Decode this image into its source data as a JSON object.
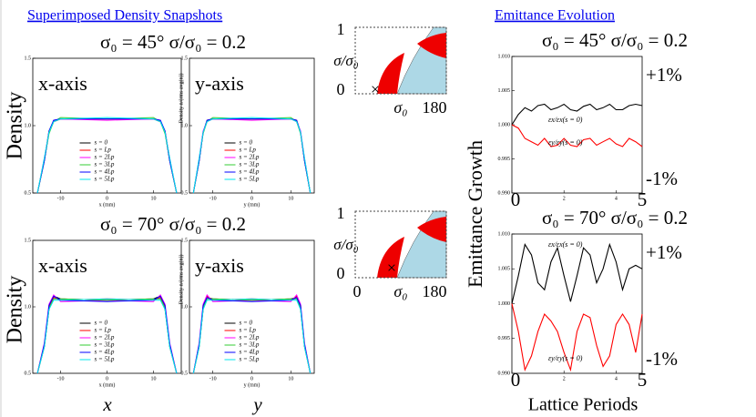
{
  "headings": {
    "left": "Superimposed Density Snapshots",
    "right": "Emittance Evolution"
  },
  "rows": [
    {
      "title": "σ₀ = 45°   σ/σ₀ = 0.2"
    },
    {
      "title": "σ₀ = 70°   σ/σ₀ = 0.2"
    }
  ],
  "density_label": "Density",
  "bottom_labels": [
    "x",
    "y"
  ],
  "emittance_ylabel": "Emittance Growth",
  "emittance_xlabel": "Lattice Periods",
  "diagrams": [
    {
      "y_top": "1",
      "y_label": "σ/σ₀",
      "y_bottom": "0",
      "marker": "×",
      "x_mid": "σ₀",
      "x_right": "180"
    },
    {
      "y_top": "1",
      "y_label": "σ/σ₀",
      "y_bottom": "0",
      "marker": "×",
      "x_left": "0",
      "x_mid": "σ₀",
      "x_right": "180"
    }
  ],
  "chart_data": [
    {
      "type": "line",
      "corner_label": "x-axis",
      "xlabel": "x (mm)",
      "legend": "lower center",
      "x": [
        -15,
        -13.5,
        -12.5,
        -11.5,
        -10,
        0,
        10,
        11.5,
        12.5,
        13.5,
        15
      ],
      "xlim": [
        -16,
        16
      ],
      "ylim": [
        0.5,
        1.5
      ],
      "xticks": [
        -10,
        0,
        10
      ],
      "yticks": [
        0.5,
        {
          "value": 1,
          "label": "1.0"
        },
        1.5
      ],
      "series": [
        {
          "name": "s = 0",
          "color": "#000000",
          "values": [
            0.5,
            0.74,
            0.95,
            1.03,
            1.05,
            1.05,
            1.05,
            1.03,
            0.95,
            0.74,
            0.5
          ]
        },
        {
          "name": "s = Lp",
          "color": "#ff0000",
          "values": [
            0.5,
            0.75,
            0.96,
            1.03,
            1.05,
            1.05,
            1.05,
            1.03,
            0.96,
            0.75,
            0.5
          ]
        },
        {
          "name": "s = 2Lp",
          "color": "#ff00ff",
          "values": [
            0.5,
            0.76,
            0.95,
            1.04,
            1.05,
            1.04,
            1.05,
            1.04,
            0.95,
            0.76,
            0.5
          ]
        },
        {
          "name": "s = 3Lp",
          "color": "#33cc33",
          "values": [
            0.5,
            0.75,
            0.94,
            1.03,
            1.06,
            1.05,
            1.06,
            1.03,
            0.94,
            0.75,
            0.5
          ]
        },
        {
          "name": "s = 4Lp",
          "color": "#0000ff",
          "values": [
            0.5,
            0.74,
            0.96,
            1.04,
            1.05,
            1.05,
            1.05,
            1.04,
            0.96,
            0.74,
            0.5
          ]
        },
        {
          "name": "s = 5Lp",
          "color": "#00e5ee",
          "values": [
            0.5,
            0.76,
            0.95,
            1.03,
            1.05,
            1.06,
            1.05,
            1.03,
            0.95,
            0.76,
            0.5
          ]
        }
      ]
    },
    {
      "type": "line",
      "corner_label": "y-axis",
      "xlabel": "y (mm)",
      "ylabel": "Density n/(rms avg(n))",
      "legend": "lower center",
      "x": [
        -15,
        -13.5,
        -12.5,
        -11.5,
        -10,
        0,
        10,
        11.5,
        12.5,
        13.5,
        15
      ],
      "xlim": [
        -16,
        16
      ],
      "ylim": [
        0.5,
        1.5
      ],
      "xticks": [
        -10,
        0,
        10
      ],
      "yticks": [
        0.5,
        {
          "value": 1,
          "label": "1.0"
        },
        1.5
      ],
      "series": [
        {
          "name": "s = 0",
          "color": "#000000",
          "values": [
            0.5,
            0.74,
            0.95,
            1.03,
            1.05,
            1.05,
            1.05,
            1.03,
            0.95,
            0.74,
            0.5
          ]
        },
        {
          "name": "s = Lp",
          "color": "#ff0000",
          "values": [
            0.5,
            0.75,
            0.95,
            1.04,
            1.05,
            1.05,
            1.05,
            1.04,
            0.95,
            0.75,
            0.5
          ]
        },
        {
          "name": "s = 2Lp",
          "color": "#ff00ff",
          "values": [
            0.5,
            0.76,
            0.96,
            1.03,
            1.05,
            1.04,
            1.05,
            1.03,
            0.96,
            0.76,
            0.5
          ]
        },
        {
          "name": "s = 3Lp",
          "color": "#33cc33",
          "values": [
            0.5,
            0.75,
            0.94,
            1.03,
            1.06,
            1.05,
            1.06,
            1.03,
            0.94,
            0.75,
            0.5
          ]
        },
        {
          "name": "s = 4Lp",
          "color": "#0000ff",
          "values": [
            0.5,
            0.74,
            0.95,
            1.04,
            1.05,
            1.05,
            1.05,
            1.04,
            0.95,
            0.74,
            0.5
          ]
        },
        {
          "name": "s = 5Lp",
          "color": "#00e5ee",
          "values": [
            0.5,
            0.76,
            0.95,
            1.03,
            1.05,
            1.06,
            1.05,
            1.03,
            0.95,
            0.76,
            0.5
          ]
        }
      ]
    },
    {
      "type": "line",
      "corner_label": "x-axis",
      "xlabel": "x (mm)",
      "legend": "lower center",
      "x": [
        -15,
        -13.5,
        -12.5,
        -11.5,
        -10,
        0,
        10,
        11.5,
        12.5,
        13.5,
        15
      ],
      "xlim": [
        -16,
        16
      ],
      "ylim": [
        0.5,
        1.5
      ],
      "xticks": [
        -10,
        0,
        10
      ],
      "yticks": [
        0.5,
        {
          "value": 1,
          "label": "1.0"
        },
        1.5
      ],
      "series": [
        {
          "name": "s = 0",
          "color": "#000000",
          "values": [
            0.5,
            0.7,
            0.98,
            1.08,
            1.06,
            1.05,
            1.06,
            1.08,
            0.98,
            0.7,
            0.5
          ]
        },
        {
          "name": "s = Lp",
          "color": "#ff0000",
          "values": [
            0.5,
            0.72,
            1.0,
            1.07,
            1.05,
            1.06,
            1.05,
            1.07,
            1.0,
            0.72,
            0.5
          ]
        },
        {
          "name": "s = 2Lp",
          "color": "#ff00ff",
          "values": [
            0.5,
            0.73,
            1.02,
            1.09,
            1.04,
            1.05,
            1.04,
            1.09,
            1.02,
            0.73,
            0.5
          ]
        },
        {
          "name": "s = 3Lp",
          "color": "#33cc33",
          "values": [
            0.5,
            0.71,
            0.99,
            1.06,
            1.06,
            1.05,
            1.06,
            1.06,
            0.99,
            0.71,
            0.5
          ]
        },
        {
          "name": "s = 4Lp",
          "color": "#0000ff",
          "values": [
            0.5,
            0.72,
            1.01,
            1.08,
            1.05,
            1.04,
            1.05,
            1.08,
            1.01,
            0.72,
            0.5
          ]
        },
        {
          "name": "s = 5Lp",
          "color": "#00e5ee",
          "values": [
            0.5,
            0.7,
            0.98,
            1.05,
            1.05,
            1.06,
            1.05,
            1.05,
            0.98,
            0.7,
            0.5
          ]
        }
      ]
    },
    {
      "type": "line",
      "corner_label": "y-axis",
      "xlabel": "y (mm)",
      "ylabel": "Density n/(rms avg(n))",
      "legend": "lower center",
      "x": [
        -15,
        -13.5,
        -12.5,
        -11.5,
        -10,
        0,
        10,
        11.5,
        12.5,
        13.5,
        15
      ],
      "xlim": [
        -16,
        16
      ],
      "ylim": [
        0.5,
        1.5
      ],
      "xticks": [
        -10,
        0,
        10
      ],
      "yticks": [
        0.5,
        {
          "value": 1,
          "label": "1.0"
        },
        1.5
      ],
      "series": [
        {
          "name": "s = 0",
          "color": "#000000",
          "values": [
            0.5,
            0.7,
            0.98,
            1.07,
            1.06,
            1.05,
            1.06,
            1.07,
            0.98,
            0.7,
            0.5
          ]
        },
        {
          "name": "s = Lp",
          "color": "#ff0000",
          "values": [
            0.5,
            0.72,
            1.0,
            1.08,
            1.05,
            1.06,
            1.05,
            1.08,
            1.0,
            0.72,
            0.5
          ]
        },
        {
          "name": "s = 2Lp",
          "color": "#ff00ff",
          "values": [
            0.5,
            0.73,
            1.02,
            1.09,
            1.04,
            1.05,
            1.04,
            1.09,
            1.02,
            0.73,
            0.5
          ]
        },
        {
          "name": "s = 3Lp",
          "color": "#33cc33",
          "values": [
            0.5,
            0.71,
            0.99,
            1.06,
            1.06,
            1.05,
            1.06,
            1.06,
            0.99,
            0.71,
            0.5
          ]
        },
        {
          "name": "s = 4Lp",
          "color": "#0000ff",
          "values": [
            0.5,
            0.72,
            1.01,
            1.07,
            1.05,
            1.04,
            1.05,
            1.07,
            1.01,
            0.72,
            0.5
          ]
        },
        {
          "name": "s = 5Lp",
          "color": "#00e5ee",
          "values": [
            0.5,
            0.7,
            0.98,
            1.05,
            1.05,
            1.06,
            1.05,
            1.05,
            0.98,
            0.7,
            0.5
          ]
        }
      ]
    },
    {
      "type": "line",
      "title": "σ₀ = 45°   σ/σ₀ = 0.2",
      "annotations": [
        "+1%",
        "-1%"
      ],
      "x": [
        0,
        0.25,
        0.5,
        0.75,
        1,
        1.25,
        1.5,
        1.75,
        2,
        2.25,
        2.5,
        2.75,
        3,
        3.25,
        3.5,
        3.75,
        4,
        4.25,
        4.5,
        4.75,
        5
      ],
      "xlim": [
        0,
        5
      ],
      "ylim": [
        0.99,
        1.01
      ],
      "xticks": [
        0,
        2,
        4,
        5
      ],
      "yticks": [
        {
          "value": 0.99,
          "label": "0.990"
        },
        0.995,
        {
          "value": 1,
          "label": "1.000"
        },
        1.005,
        {
          "value": 1.01,
          "label": "1.010"
        }
      ],
      "series": [
        {
          "name": "εx/εx(s = 0)",
          "color": "#000000",
          "values": [
            1.0,
            1.0015,
            1.0025,
            1.002,
            1.0028,
            1.003,
            1.0022,
            1.0025,
            1.003,
            1.0022,
            1.002,
            1.0027,
            1.003,
            1.0022,
            1.0025,
            1.003,
            1.0022,
            1.0022,
            1.0028,
            1.003,
            1.0028
          ]
        },
        {
          "name": "εy/εy(s = 0)",
          "color": "#ff0000",
          "values": [
            1.0,
            0.9995,
            0.998,
            0.9975,
            0.997,
            0.998,
            0.9968,
            0.997,
            0.998,
            0.997,
            0.9968,
            0.9978,
            0.998,
            0.997,
            0.9975,
            0.998,
            0.9972,
            0.9968,
            0.998,
            0.9975,
            0.9968
          ]
        }
      ]
    },
    {
      "type": "line",
      "title": "σ₀ = 70°   σ/σ₀ = 0.2",
      "annotations": [
        "+1%",
        "-1%"
      ],
      "x": [
        0,
        0.25,
        0.5,
        0.75,
        1,
        1.25,
        1.5,
        1.75,
        2,
        2.25,
        2.5,
        2.75,
        3,
        3.25,
        3.5,
        3.75,
        4,
        4.25,
        4.5,
        4.75,
        5
      ],
      "xlim": [
        0,
        5
      ],
      "ylim": [
        0.99,
        1.01
      ],
      "xticks": [
        0,
        2,
        4,
        5
      ],
      "yticks": [
        {
          "value": 0.99,
          "label": "0.990"
        },
        0.995,
        {
          "value": 1,
          "label": "1.000"
        },
        1.005,
        {
          "value": 1.01,
          "label": "1.010"
        }
      ],
      "series": [
        {
          "name": "εx/εx(s = 0)",
          "color": "#000000",
          "values": [
            1.0,
            1.004,
            1.0085,
            1.007,
            1.003,
            1.002,
            1.006,
            1.008,
            1.004,
            1.0003,
            1.004,
            1.008,
            1.007,
            1.003,
            1.005,
            1.0085,
            1.006,
            1.002,
            1.005,
            1.0055,
            1.005
          ]
        },
        {
          "name": "εy/εy(s = 0)",
          "color": "#ff0000",
          "values": [
            1.0,
            0.996,
            0.9905,
            0.9925,
            0.996,
            0.9985,
            0.9975,
            0.996,
            0.993,
            0.9905,
            0.996,
            0.9985,
            0.998,
            0.994,
            0.991,
            0.9925,
            0.997,
            0.9985,
            0.997,
            0.993,
            0.9985
          ]
        }
      ]
    }
  ]
}
